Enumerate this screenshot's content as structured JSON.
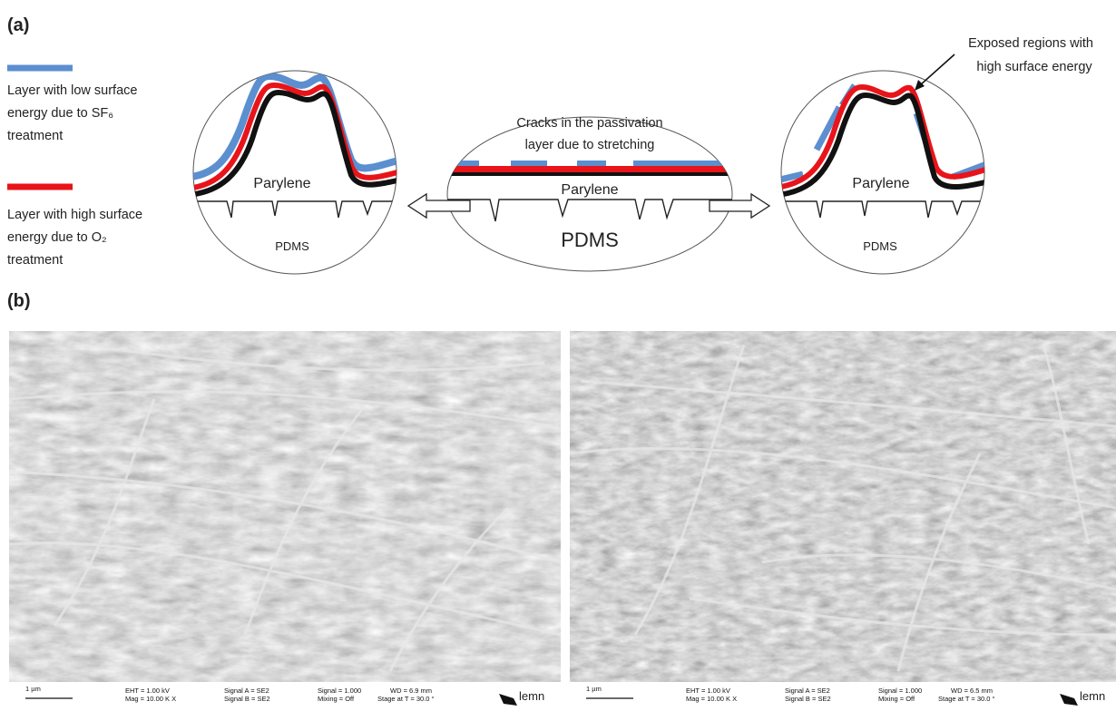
{
  "panel_a": {
    "label": "(a)",
    "legend": [
      {
        "lines": [
          "Layer with low surface",
          "energy due to SF₆",
          "treatment"
        ]
      },
      {
        "lines": [
          "Layer with high surface",
          "energy due to O₂",
          "treatment"
        ]
      }
    ],
    "left_circle": {
      "top": "Parylene",
      "bottom": "PDMS"
    },
    "center_ellipse": {
      "caption": [
        "Cracks in the passivation",
        "layer due to stretching"
      ],
      "top": "Parylene",
      "bottom": "PDMS"
    },
    "right_circle": {
      "top": "Parylene",
      "bottom": "PDMS"
    },
    "annotation": [
      "Exposed regions with",
      "high surface energy"
    ]
  },
  "panel_b": {
    "label": "(b)",
    "images": [
      {
        "scale": "1 µm",
        "eht": "EHT = 1.00 kV",
        "mag": "Mag = 10.00 K X",
        "signal_a": "Signal A = SE2",
        "signal_b": "Signal B = SE2",
        "signal": "Signal = 1.000",
        "mixing": "Mixing = Off",
        "wd": "WD = 6.9 mm",
        "stage": "Stage at T = 30.0 °",
        "logo": "lemn"
      },
      {
        "scale": "1 µm",
        "eht": "EHT = 1.00 kV",
        "mag": "Mag = 10.00 K X",
        "signal_a": "Signal A = SE2",
        "signal_b": "Signal B = SE2",
        "signal": "Signal = 1.000",
        "mixing": "Mixing = Off",
        "wd": "WD = 6.5 mm",
        "stage": "Stage at T = 30.0 °",
        "logo": "lemn"
      }
    ]
  }
}
